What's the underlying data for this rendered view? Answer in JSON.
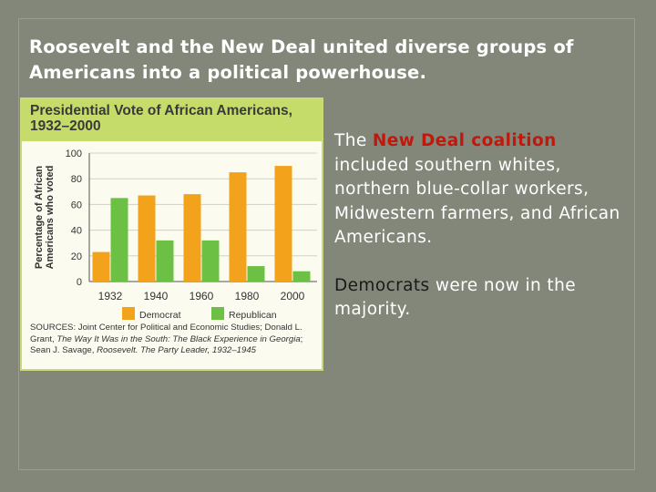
{
  "slide": {
    "title": "Roosevelt and the New Deal united diverse groups of Americans into a political powerhouse.",
    "para1_prefix": "The ",
    "para1_highlight": "New Deal coalition",
    "para1_rest": " included southern whites, northern blue-collar workers, Midwestern farmers, and African Americans.",
    "para2_highlight": "Democrats",
    "para2_rest": " were now in the majority."
  },
  "sources": {
    "label": "SOURCES:",
    "part1": " Joint Center for Political and Economic Studies; Donald L. Grant, ",
    "book1": "The Way It Was in the South: The Black Experience in Georgia",
    "part2": "; Sean J. Savage, ",
    "book2": "Roosevelt. The Party Leader, 1932–1945"
  },
  "chart_data": {
    "type": "bar",
    "title": "Presidential Vote of African Americans, 1932–2000",
    "ylabel": "Percentage of African Americans who voted",
    "xlabel": "",
    "categories": [
      "1932",
      "1940",
      "1960",
      "1980",
      "2000"
    ],
    "series": [
      {
        "name": "Democrat",
        "color": "#f2a21b",
        "values": [
          23,
          67,
          68,
          85,
          90
        ]
      },
      {
        "name": "Republican",
        "color": "#6cc043",
        "values": [
          65,
          32,
          32,
          12,
          8
        ]
      }
    ],
    "ylim": [
      0,
      100
    ],
    "yticks": [
      0,
      20,
      40,
      60,
      80,
      100
    ],
    "grid": true,
    "legend": "bottom"
  }
}
